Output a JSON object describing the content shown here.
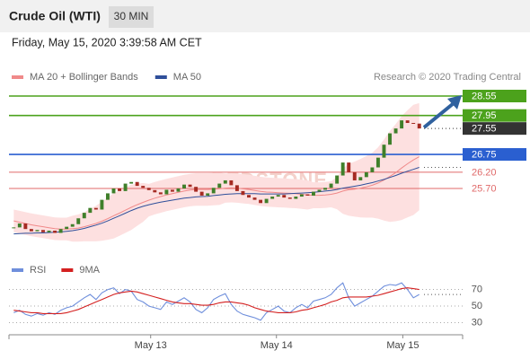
{
  "header": {
    "title": "Crude Oil (WTI)",
    "timeframe": "30 MIN",
    "timestamp": "Friday, May 15, 2020 3:39:58 AM CET"
  },
  "chart_data": [
    {
      "type": "candlestick",
      "watermark": "REDSTONE",
      "credit": "Research © 2020 Trading Central",
      "up_color": "#3f7f2a",
      "down_color": "#a52a22",
      "values": [
        24.5,
        24.62,
        24.45,
        24.38,
        24.42,
        24.35,
        24.4,
        24.33,
        24.45,
        24.52,
        24.6,
        24.78,
        24.95,
        25.1,
        25.05,
        25.35,
        25.55,
        25.7,
        25.62,
        25.85,
        25.9,
        25.78,
        25.72,
        25.65,
        25.58,
        25.52,
        25.66,
        25.6,
        25.7,
        25.82,
        25.75,
        25.6,
        25.48,
        25.55,
        25.72,
        25.85,
        25.95,
        25.8,
        25.62,
        25.5,
        25.42,
        25.35,
        25.25,
        25.38,
        25.45,
        25.5,
        25.42,
        25.38,
        25.45,
        25.52,
        25.48,
        25.6,
        25.66,
        25.72,
        25.85,
        26.1,
        26.5,
        26.2,
        25.95,
        26.05,
        26.2,
        26.35,
        26.65,
        27.05,
        27.4,
        27.55,
        27.8,
        27.72,
        27.7,
        27.55
      ],
      "series": [
        {
          "name": "MA 20 + Bollinger Bands",
          "color": "#f08a8a",
          "band_color": "#fde0e0",
          "values": [
            24.7,
            24.66,
            24.62,
            24.58,
            24.55,
            24.52,
            24.49,
            24.46,
            24.45,
            24.45,
            24.46,
            24.48,
            24.52,
            24.57,
            24.62,
            24.69,
            24.77,
            24.86,
            24.94,
            25.03,
            25.12,
            25.2,
            25.27,
            25.34,
            25.4,
            25.45,
            25.5,
            25.54,
            25.58,
            25.62,
            25.65,
            25.67,
            25.67,
            25.67,
            25.68,
            25.69,
            25.71,
            25.72,
            25.71,
            25.69,
            25.67,
            25.64,
            25.61,
            25.59,
            25.58,
            25.57,
            25.56,
            25.55,
            25.54,
            25.52,
            25.5,
            25.49,
            25.49,
            25.5,
            25.52,
            25.56,
            25.62,
            25.66,
            25.68,
            25.71,
            25.75,
            25.8,
            25.87,
            25.96,
            26.07,
            26.19,
            26.33,
            26.46,
            26.58,
            26.68
          ],
          "upper": [
            25.05,
            25.01,
            24.97,
            24.93,
            24.9,
            24.87,
            24.84,
            24.81,
            24.8,
            24.8,
            24.86,
            24.9,
            24.97,
            25.07,
            25.17,
            25.29,
            25.42,
            25.56,
            25.64,
            25.73,
            25.82,
            25.85,
            25.87,
            25.84,
            25.9,
            25.95,
            26.0,
            26.04,
            26.08,
            26.12,
            26.15,
            26.17,
            26.17,
            26.17,
            26.18,
            26.19,
            26.16,
            26.17,
            26.16,
            26.14,
            26.12,
            26.09,
            26.06,
            26.04,
            26.03,
            26.02,
            26.01,
            26.0,
            25.99,
            25.97,
            25.95,
            25.89,
            25.89,
            25.9,
            25.92,
            26.06,
            26.32,
            26.46,
            26.53,
            26.61,
            26.7,
            26.8,
            26.97,
            27.21,
            27.47,
            27.69,
            27.93,
            28.11,
            28.28,
            28.33
          ],
          "lower": [
            24.35,
            24.31,
            24.27,
            24.23,
            24.2,
            24.17,
            24.14,
            24.11,
            24.1,
            24.1,
            24.06,
            24.06,
            24.07,
            24.07,
            24.07,
            24.09,
            24.12,
            24.16,
            24.24,
            24.33,
            24.42,
            24.55,
            24.67,
            24.84,
            24.9,
            24.95,
            25.0,
            25.04,
            25.08,
            25.12,
            25.15,
            25.17,
            25.17,
            25.17,
            25.18,
            25.19,
            25.26,
            25.27,
            25.26,
            25.24,
            25.22,
            25.19,
            25.16,
            25.14,
            25.13,
            25.12,
            25.11,
            25.1,
            25.09,
            25.07,
            25.05,
            25.09,
            25.09,
            25.1,
            25.12,
            25.06,
            24.92,
            24.86,
            24.83,
            24.81,
            24.8,
            24.8,
            24.77,
            24.71,
            24.67,
            24.69,
            24.73,
            24.81,
            24.88,
            25.03
          ]
        },
        {
          "name": "MA 50",
          "color": "#2f4f9a",
          "values": [
            24.3,
            24.31,
            24.32,
            24.32,
            24.33,
            24.33,
            24.34,
            24.35,
            24.36,
            24.38,
            24.4,
            24.43,
            24.47,
            24.52,
            24.57,
            24.63,
            24.7,
            24.78,
            24.86,
            24.94,
            25.02,
            25.09,
            25.15,
            25.2,
            25.24,
            25.28,
            25.31,
            25.34,
            25.37,
            25.4,
            25.42,
            25.44,
            25.45,
            25.46,
            25.48,
            25.5,
            25.52,
            25.53,
            25.54,
            25.54,
            25.54,
            25.54,
            25.53,
            25.53,
            25.53,
            25.53,
            25.53,
            25.54,
            25.55,
            25.56,
            25.57,
            25.58,
            25.6,
            25.62,
            25.64,
            25.67,
            25.71,
            25.74,
            25.77,
            25.8,
            25.84,
            25.88,
            25.93,
            25.98,
            26.04,
            26.1,
            26.17,
            26.23,
            26.29,
            26.35
          ]
        }
      ],
      "levels": {
        "values": [
          28.55,
          27.95,
          27.55,
          26.75,
          26.2,
          25.7
        ],
        "value_labels": [
          "28.55",
          "27.95",
          "27.55",
          "26.75",
          "26.20",
          "25.70"
        ],
        "colors": [
          "#4ca21c",
          "#4ca21c",
          "#333333",
          "#2a5fd0",
          "#e06a6a",
          "#e06a6a"
        ],
        "boxed": [
          true,
          true,
          true,
          true,
          false,
          false
        ],
        "line_styles": [
          "solid",
          "solid",
          "dotted",
          "solid",
          "solid",
          "solid"
        ]
      },
      "xlim": [
        -0.5,
        69.5
      ],
      "ylim": [
        23.9,
        28.9
      ]
    },
    {
      "type": "line",
      "grid": true,
      "series": [
        {
          "name": "RSI",
          "color": "#6f8fdc",
          "values": [
            42,
            45,
            40,
            38,
            41,
            39,
            42,
            40,
            45,
            48,
            50,
            55,
            60,
            64,
            58,
            66,
            70,
            72,
            65,
            70,
            68,
            58,
            55,
            50,
            48,
            46,
            55,
            52,
            56,
            60,
            55,
            46,
            42,
            48,
            58,
            62,
            65,
            52,
            44,
            40,
            38,
            36,
            33,
            42,
            46,
            50,
            44,
            42,
            48,
            52,
            48,
            56,
            58,
            60,
            64,
            72,
            78,
            60,
            50,
            54,
            58,
            62,
            68,
            74,
            76,
            75,
            78,
            70,
            60,
            64
          ]
        },
        {
          "name": "9MA",
          "color": "#d42020",
          "values": [
            45,
            44,
            43,
            42,
            42,
            41,
            41,
            41,
            41,
            42,
            44,
            46,
            49,
            52,
            55,
            58,
            61,
            64,
            66,
            67,
            68,
            67,
            65,
            63,
            61,
            59,
            57,
            55,
            54,
            53,
            53,
            52,
            51,
            51,
            52,
            54,
            55,
            55,
            54,
            53,
            51,
            48,
            46,
            44,
            43,
            42,
            42,
            42,
            43,
            45,
            46,
            48,
            50,
            52,
            55,
            57,
            60,
            61,
            61,
            61,
            61,
            62,
            63,
            65,
            67,
            69,
            71,
            72,
            71,
            70
          ]
        }
      ],
      "xlim": [
        -0.5,
        69.5
      ],
      "xticks": [
        {
          "value": 23.3,
          "label": "May 13"
        },
        {
          "value": 44.7,
          "label": "May 14"
        },
        {
          "value": 66.2,
          "label": "May 15"
        }
      ],
      "ylim": [
        20,
        80
      ],
      "yticks": [
        30,
        50,
        70
      ]
    }
  ]
}
